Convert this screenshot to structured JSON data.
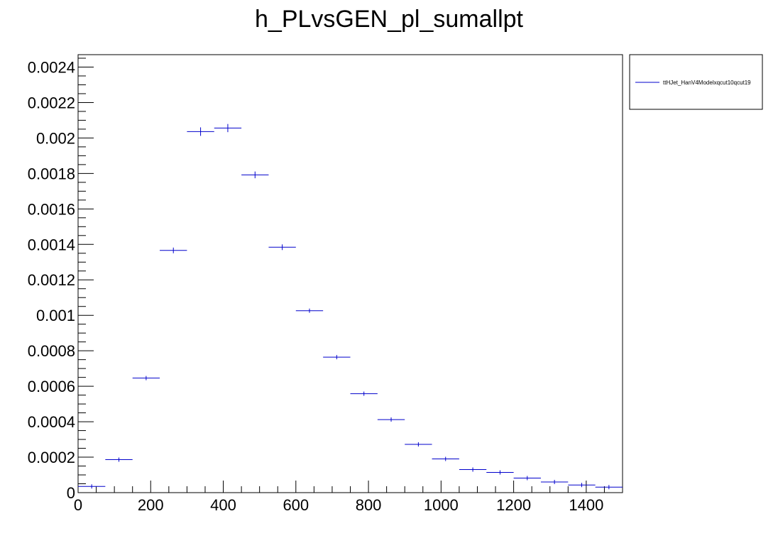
{
  "colors": {
    "series": "#0000cc",
    "axis": "#000000",
    "background": "#ffffff"
  },
  "chart_data": {
    "type": "scatter",
    "title": "h_PLvsGEN_pl_sumallpt",
    "xlabel": "",
    "ylabel": "",
    "xlim": [
      0,
      1500
    ],
    "ylim": [
      0,
      0.00247
    ],
    "xticks": [
      0,
      200,
      400,
      600,
      800,
      1000,
      1200,
      1400
    ],
    "xtick_labels": [
      "0",
      "200",
      "400",
      "600",
      "800",
      "1000",
      "1200",
      "1400"
    ],
    "yticks": [
      0,
      0.0002,
      0.0004,
      0.0006,
      0.0008,
      0.001,
      0.0012,
      0.0014,
      0.0016,
      0.0018,
      0.002,
      0.0022,
      0.0024
    ],
    "ytick_labels": [
      "0",
      "0.0002",
      "0.0004",
      "0.0006",
      "0.0008",
      "0.001",
      "0.0012",
      "0.0014",
      "0.0016",
      "0.0018",
      "0.002",
      "0.0022",
      "0.0024"
    ],
    "grid": false,
    "legend_position": "outside-top-right",
    "series": [
      {
        "name": "ttHJet_HanV4Modelxqcut10qcut19",
        "bin_width": 75,
        "x": [
          37.5,
          112.5,
          187.5,
          262.5,
          337.5,
          412.5,
          487.5,
          562.5,
          637.5,
          712.5,
          787.5,
          862.5,
          937.5,
          1012.5,
          1087.5,
          1162.5,
          1237.5,
          1312.5,
          1387.5,
          1462.5
        ],
        "y": [
          3.5e-05,
          0.000186,
          0.000646,
          0.001366,
          0.002036,
          0.002056,
          0.001792,
          0.001384,
          0.001026,
          0.000764,
          0.000558,
          0.000412,
          0.000272,
          0.00019,
          0.00013,
          0.000114,
          8.2e-05,
          6e-05,
          4.3e-05,
          3.1e-05
        ],
        "yerr": [
          4e-06,
          5e-06,
          9e-06,
          1.6e-05,
          2.4e-05,
          2.3e-05,
          1.9e-05,
          1.6e-05,
          1.2e-05,
          1e-05,
          8e-06,
          7e-06,
          5e-06,
          4e-06,
          4e-06,
          3e-06,
          3e-06,
          2e-06,
          2e-06,
          2e-06
        ]
      }
    ]
  }
}
